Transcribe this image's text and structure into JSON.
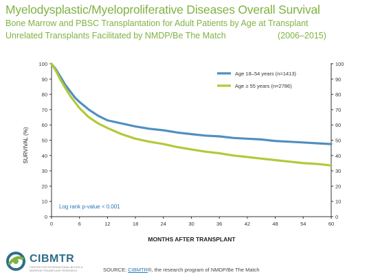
{
  "header": {
    "title": "Myelodysplastic/Myeloproliferative Diseases Overall Survival",
    "subtitle1": "Bone Marrow and PBSC Transplantation for Adult Patients by Age at Transplant",
    "subtitle2": "Unrelated Transplants Facilitated by NMDP/Be The Match",
    "years": "(2006–2015)"
  },
  "chart_data": {
    "type": "line",
    "xlabel": "MONTHS AFTER TRANSPLANT",
    "ylabel": "SURVIVAL (%)",
    "xlim": [
      0,
      60
    ],
    "ylim": [
      0,
      100
    ],
    "xticks": [
      0,
      6,
      12,
      18,
      24,
      30,
      36,
      42,
      48,
      54,
      60
    ],
    "yticks": [
      0,
      10,
      20,
      30,
      40,
      50,
      60,
      70,
      80,
      90,
      100
    ],
    "grid": false,
    "legend_position": "top-right",
    "annotation": "Log rank p-value < 0.001",
    "x": [
      0,
      1,
      2,
      3,
      4,
      5,
      6,
      8,
      10,
      12,
      15,
      18,
      21,
      24,
      27,
      30,
      33,
      36,
      39,
      42,
      45,
      48,
      51,
      54,
      57,
      60
    ],
    "series": [
      {
        "name": "Age 18–54 years (n=1413)",
        "color": "#4f8fc0",
        "values": [
          100,
          96,
          91,
          86,
          82,
          78,
          75,
          70,
          66,
          63,
          61,
          59,
          57.5,
          56.5,
          55,
          54,
          53,
          52.5,
          51.5,
          51,
          50.5,
          49.5,
          49,
          48.5,
          48,
          47.5
        ]
      },
      {
        "name": "Age ≥ 55 years (n=2786)",
        "color": "#b3c937",
        "values": [
          100,
          95,
          89,
          84,
          79,
          75,
          71,
          65,
          61,
          58,
          54,
          51,
          49,
          47.5,
          45.5,
          44,
          42.5,
          41.5,
          40,
          39,
          38,
          37,
          36,
          35,
          34.5,
          33.5
        ]
      }
    ]
  },
  "footer": {
    "logo_name": "CIBMTR",
    "logo_tagline": "CENTER FOR INTERNATIONAL BLOOD & MARROW TRANSPLANT RESEARCH",
    "logo_icon": "cibmtr-logo-icon",
    "source_prefix": "SOURCE: ",
    "source_link": "CIBMTR",
    "source_suffix": "®, the research program of NMDP/Be The Match"
  }
}
